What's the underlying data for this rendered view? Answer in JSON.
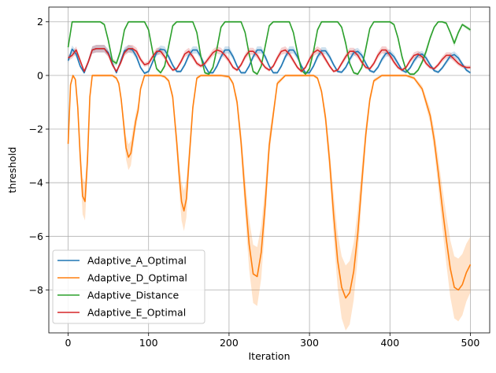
{
  "chart_data": {
    "type": "line",
    "title": "",
    "xlabel": "Iteration",
    "ylabel": "threshold",
    "xlim": [
      -24,
      524
    ],
    "ylim": [
      -9.6,
      2.55
    ],
    "xticks": [
      0,
      100,
      200,
      300,
      400,
      500
    ],
    "yticks": [
      -8,
      -6,
      -4,
      -2,
      0,
      2
    ],
    "ytick_labels": [
      "−8",
      "−6",
      "−4",
      "−2",
      "0",
      "2"
    ],
    "grid": true,
    "legend_position": "lower-left",
    "series": [
      {
        "name": "Adaptive_A_Optimal",
        "color": "#1f77b4",
        "x": [
          0,
          5,
          10,
          15,
          20,
          25,
          30,
          35,
          40,
          45,
          50,
          55,
          60,
          65,
          70,
          75,
          80,
          85,
          90,
          95,
          100,
          105,
          110,
          115,
          120,
          125,
          130,
          135,
          140,
          145,
          150,
          155,
          160,
          165,
          170,
          175,
          180,
          185,
          190,
          195,
          200,
          205,
          210,
          215,
          220,
          225,
          230,
          235,
          240,
          245,
          250,
          255,
          260,
          265,
          270,
          275,
          280,
          285,
          290,
          295,
          300,
          305,
          310,
          315,
          320,
          325,
          330,
          335,
          340,
          345,
          350,
          355,
          360,
          365,
          370,
          375,
          380,
          385,
          390,
          395,
          400,
          405,
          410,
          415,
          420,
          425,
          430,
          435,
          440,
          445,
          450,
          455,
          460,
          465,
          470,
          475,
          480,
          485,
          490,
          495,
          500
        ],
        "y": [
          0.55,
          0.98,
          0.8,
          0.35,
          0.1,
          0.5,
          0.95,
          1.0,
          1.0,
          1.0,
          0.85,
          0.45,
          0.1,
          0.5,
          0.92,
          1.0,
          0.95,
          0.7,
          0.3,
          0.08,
          0.15,
          0.5,
          0.85,
          0.98,
          0.95,
          0.7,
          0.38,
          0.15,
          0.15,
          0.4,
          0.75,
          0.95,
          0.95,
          0.7,
          0.35,
          0.1,
          0.1,
          0.35,
          0.7,
          0.95,
          0.95,
          0.7,
          0.35,
          0.1,
          0.1,
          0.35,
          0.7,
          0.95,
          0.95,
          0.7,
          0.35,
          0.1,
          0.1,
          0.35,
          0.7,
          0.95,
          0.95,
          0.7,
          0.35,
          0.1,
          0.1,
          0.35,
          0.7,
          0.92,
          0.92,
          0.7,
          0.4,
          0.15,
          0.12,
          0.3,
          0.6,
          0.85,
          0.9,
          0.75,
          0.45,
          0.18,
          0.12,
          0.3,
          0.6,
          0.82,
          0.85,
          0.7,
          0.45,
          0.2,
          0.12,
          0.28,
          0.55,
          0.75,
          0.8,
          0.65,
          0.4,
          0.18,
          0.12,
          0.28,
          0.5,
          0.72,
          0.78,
          0.65,
          0.42,
          0.2,
          0.1
        ]
      },
      {
        "name": "Adaptive_D_Optimal",
        "color": "#ff7f0e",
        "x": [
          0,
          3,
          6,
          9,
          12,
          15,
          18,
          21,
          24,
          27,
          30,
          35,
          40,
          45,
          50,
          55,
          60,
          63,
          66,
          69,
          72,
          75,
          78,
          81,
          84,
          87,
          90,
          95,
          100,
          105,
          110,
          115,
          120,
          125,
          130,
          135,
          138,
          141,
          144,
          147,
          150,
          155,
          160,
          165,
          170,
          180,
          190,
          200,
          205,
          210,
          215,
          220,
          225,
          230,
          235,
          240,
          245,
          250,
          260,
          270,
          280,
          290,
          300,
          305,
          310,
          315,
          320,
          325,
          330,
          335,
          340,
          345,
          350,
          355,
          360,
          365,
          370,
          375,
          380,
          390,
          400,
          410,
          420,
          430,
          440,
          450,
          455,
          460,
          465,
          470,
          475,
          480,
          485,
          490,
          495,
          500
        ],
        "y": [
          -2.55,
          -0.35,
          0.0,
          -0.15,
          -1.2,
          -3.0,
          -4.5,
          -4.7,
          -3.2,
          -0.8,
          0.0,
          0.0,
          0.0,
          0.0,
          0.0,
          0.0,
          -0.1,
          -0.3,
          -0.9,
          -1.8,
          -2.7,
          -3.05,
          -2.9,
          -2.3,
          -1.7,
          -1.3,
          -0.5,
          0.0,
          0.0,
          0.0,
          0.0,
          0.0,
          -0.05,
          -0.2,
          -0.8,
          -2.5,
          -3.7,
          -4.7,
          -5.05,
          -4.6,
          -3.3,
          -1.2,
          -0.1,
          0.0,
          0.0,
          0.0,
          0.0,
          -0.05,
          -0.3,
          -1.0,
          -2.5,
          -4.5,
          -6.3,
          -7.4,
          -7.5,
          -6.6,
          -4.8,
          -2.6,
          -0.3,
          0.0,
          0.0,
          0.0,
          0.0,
          0.0,
          -0.1,
          -0.6,
          -1.6,
          -3.2,
          -5.2,
          -6.9,
          -7.9,
          -8.3,
          -8.1,
          -7.3,
          -5.9,
          -4.0,
          -2.2,
          -0.9,
          -0.2,
          0.0,
          0.0,
          0.0,
          0.0,
          -0.1,
          -0.5,
          -1.5,
          -2.4,
          -3.6,
          -4.9,
          -6.1,
          -7.2,
          -7.9,
          -8.0,
          -7.8,
          -7.35,
          -7.05
        ]
      },
      {
        "name": "Adaptive_Distance",
        "color": "#2ca02c",
        "x": [
          0,
          5,
          10,
          15,
          20,
          25,
          30,
          35,
          40,
          45,
          50,
          55,
          60,
          65,
          70,
          75,
          80,
          85,
          90,
          95,
          100,
          105,
          110,
          115,
          120,
          125,
          130,
          135,
          140,
          145,
          150,
          155,
          160,
          165,
          170,
          175,
          180,
          185,
          190,
          195,
          200,
          205,
          210,
          215,
          220,
          225,
          230,
          235,
          240,
          245,
          250,
          255,
          260,
          265,
          270,
          275,
          280,
          285,
          290,
          295,
          300,
          305,
          310,
          315,
          320,
          325,
          330,
          335,
          340,
          345,
          350,
          355,
          360,
          365,
          370,
          375,
          380,
          385,
          390,
          395,
          400,
          405,
          410,
          415,
          420,
          425,
          430,
          435,
          440,
          445,
          450,
          455,
          460,
          465,
          470,
          475,
          480,
          485,
          490,
          495,
          500
        ],
        "y": [
          1.05,
          2.0,
          2.0,
          2.0,
          2.0,
          2.0,
          2.0,
          2.0,
          2.0,
          1.9,
          1.3,
          0.55,
          0.45,
          0.9,
          1.7,
          2.0,
          2.0,
          2.0,
          2.0,
          2.0,
          1.7,
          0.9,
          0.25,
          0.1,
          0.35,
          1.1,
          1.85,
          2.0,
          2.0,
          2.0,
          2.0,
          2.0,
          1.6,
          0.7,
          0.1,
          0.05,
          0.3,
          1.0,
          1.8,
          2.0,
          2.0,
          2.0,
          2.0,
          2.0,
          1.6,
          0.8,
          0.15,
          0.05,
          0.35,
          1.1,
          1.85,
          2.0,
          2.0,
          2.0,
          2.0,
          2.0,
          1.6,
          0.85,
          0.2,
          0.05,
          0.25,
          0.9,
          1.7,
          2.0,
          2.0,
          2.0,
          2.0,
          2.0,
          1.8,
          1.2,
          0.45,
          0.1,
          0.05,
          0.3,
          1.0,
          1.75,
          2.0,
          2.0,
          2.0,
          2.0,
          2.0,
          1.9,
          1.4,
          0.7,
          0.2,
          0.05,
          0.05,
          0.2,
          0.5,
          0.9,
          1.4,
          1.8,
          2.0,
          2.0,
          1.95,
          1.6,
          1.2,
          1.6,
          1.9,
          1.8,
          1.7
        ]
      },
      {
        "name": "Adaptive_E_Optimal",
        "color": "#d62728",
        "x": [
          0,
          5,
          10,
          15,
          20,
          25,
          30,
          35,
          40,
          45,
          50,
          55,
          60,
          65,
          70,
          75,
          80,
          85,
          90,
          95,
          100,
          105,
          110,
          115,
          120,
          125,
          130,
          135,
          140,
          145,
          150,
          155,
          160,
          165,
          170,
          175,
          180,
          185,
          190,
          195,
          200,
          205,
          210,
          215,
          220,
          225,
          230,
          235,
          240,
          245,
          250,
          255,
          260,
          265,
          270,
          275,
          280,
          285,
          290,
          295,
          300,
          305,
          310,
          315,
          320,
          325,
          330,
          335,
          340,
          345,
          350,
          355,
          360,
          365,
          370,
          375,
          380,
          385,
          390,
          395,
          400,
          405,
          410,
          415,
          420,
          425,
          430,
          435,
          440,
          445,
          450,
          455,
          460,
          465,
          470,
          475,
          480,
          485,
          490,
          495,
          500
        ],
        "y": [
          0.65,
          0.75,
          0.95,
          0.55,
          0.15,
          0.5,
          0.95,
          1.0,
          1.0,
          1.0,
          0.8,
          0.4,
          0.15,
          0.45,
          0.85,
          1.0,
          1.0,
          0.9,
          0.6,
          0.4,
          0.45,
          0.7,
          0.9,
          0.9,
          0.7,
          0.4,
          0.2,
          0.25,
          0.5,
          0.8,
          0.9,
          0.7,
          0.45,
          0.35,
          0.45,
          0.65,
          0.85,
          0.95,
          0.9,
          0.75,
          0.55,
          0.3,
          0.2,
          0.4,
          0.7,
          0.9,
          0.9,
          0.75,
          0.5,
          0.3,
          0.2,
          0.35,
          0.65,
          0.9,
          0.95,
          0.8,
          0.55,
          0.3,
          0.15,
          0.3,
          0.6,
          0.85,
          0.95,
          0.85,
          0.6,
          0.35,
          0.15,
          0.2,
          0.45,
          0.7,
          0.9,
          0.9,
          0.75,
          0.5,
          0.3,
          0.25,
          0.45,
          0.75,
          0.95,
          0.95,
          0.75,
          0.5,
          0.3,
          0.2,
          0.3,
          0.55,
          0.75,
          0.8,
          0.7,
          0.45,
          0.3,
          0.25,
          0.4,
          0.6,
          0.75,
          0.75,
          0.6,
          0.45,
          0.35,
          0.3,
          0.3
        ]
      }
    ]
  }
}
